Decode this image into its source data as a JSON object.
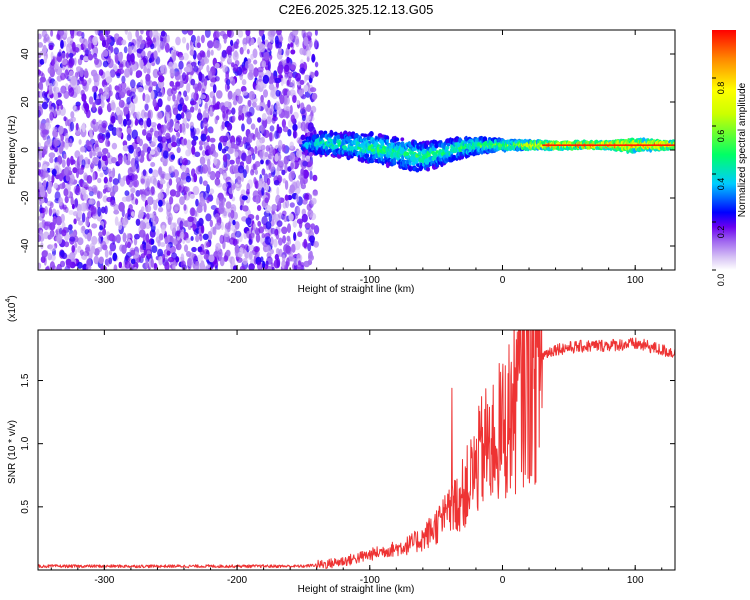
{
  "figure_title": "C2E6.2025.325.12.13.G05",
  "colors": {
    "snr_line": "#ee3333",
    "colormap": [
      "#ffffff",
      "#d9c6f5",
      "#a066f0",
      "#6a00f0",
      "#0000ff",
      "#00ccff",
      "#00ff66",
      "#ffff00",
      "#ff0000"
    ]
  },
  "chart_data": [
    {
      "type": "heatmap",
      "title": "C2E6.2025.325.12.13.G05",
      "xlabel": "Height of straight line (km)",
      "ylabel": "Frequency (Hz)",
      "xlim": [
        -350,
        130
      ],
      "ylim": [
        -50,
        50
      ],
      "xticks": [
        -300,
        -200,
        -100,
        0,
        100
      ],
      "yticks": [
        -40,
        -20,
        0,
        20,
        40
      ],
      "noise_region": {
        "x_range": [
          -350,
          -140
        ],
        "freq_range": [
          -50,
          50
        ],
        "level": 0.15
      },
      "signal_band": [
        {
          "x": -150,
          "center": 2,
          "half_width": 4,
          "level": 0.35
        },
        {
          "x": -135,
          "center": 3,
          "half_width": 5,
          "level": 0.45
        },
        {
          "x": -120,
          "center": 2,
          "half_width": 5,
          "level": 0.45
        },
        {
          "x": -100,
          "center": 1,
          "half_width": 6,
          "level": 0.5
        },
        {
          "x": -80,
          "center": -1,
          "half_width": 6,
          "level": 0.5
        },
        {
          "x": -60,
          "center": -3,
          "half_width": 6,
          "level": 0.5
        },
        {
          "x": -45,
          "center": -1,
          "half_width": 5,
          "level": 0.5
        },
        {
          "x": -30,
          "center": 1,
          "half_width": 4,
          "level": 0.5
        },
        {
          "x": -15,
          "center": 2,
          "half_width": 3,
          "level": 0.55
        },
        {
          "x": 0,
          "center": 2,
          "half_width": 2,
          "level": 0.6
        },
        {
          "x": 20,
          "center": 2,
          "half_width": 1.5,
          "level": 0.8
        },
        {
          "x": 50,
          "center": 2,
          "half_width": 1.2,
          "level": 0.95
        },
        {
          "x": 80,
          "center": 2,
          "half_width": 1.2,
          "level": 0.95
        },
        {
          "x": 95,
          "center": 2,
          "half_width": 2.5,
          "level": 0.9
        },
        {
          "x": 130,
          "center": 2,
          "half_width": 1.2,
          "level": 0.95
        }
      ],
      "colorbar": {
        "label": "Normalized spectral amplitude",
        "range": [
          0,
          1
        ],
        "ticks": [
          0.0,
          0.2,
          0.4,
          0.6,
          0.8
        ],
        "tick_labels": [
          "0.0",
          "0.2",
          "0.4",
          "0.6",
          "0.8"
        ]
      }
    },
    {
      "type": "line",
      "xlabel": "Height of straight line (km)",
      "ylabel": "SNR (10 * v/v)",
      "y_scale_label": "(x10",
      "y_scale_exponent": "4",
      "y_scale_suffix": ")",
      "xlim": [
        -350,
        130
      ],
      "ylim": [
        0,
        1.9
      ],
      "xticks": [
        -300,
        -200,
        -100,
        0,
        100
      ],
      "yticks": [
        0.5,
        1.0,
        1.5
      ],
      "ytick_labels": [
        "0.5",
        "1.0",
        "1.5"
      ],
      "series": [
        {
          "name": "SNR",
          "x": [
            -350,
            -300,
            -250,
            -200,
            -150,
            -130,
            -115,
            -100,
            -90,
            -80,
            -70,
            -60,
            -50,
            -40,
            -30,
            -20,
            -15,
            -10,
            -5,
            0,
            5,
            10,
            15,
            20,
            25,
            30,
            40,
            60,
            80,
            100,
            110,
            120,
            130
          ],
          "y": [
            0.03,
            0.03,
            0.03,
            0.03,
            0.03,
            0.05,
            0.08,
            0.12,
            0.15,
            0.17,
            0.2,
            0.25,
            0.35,
            0.45,
            0.6,
            0.8,
            0.95,
            1.0,
            1.05,
            1.1,
            1.2,
            1.35,
            1.5,
            1.55,
            1.62,
            1.7,
            1.75,
            1.77,
            1.78,
            1.79,
            1.77,
            1.74,
            1.72
          ]
        }
      ]
    }
  ]
}
